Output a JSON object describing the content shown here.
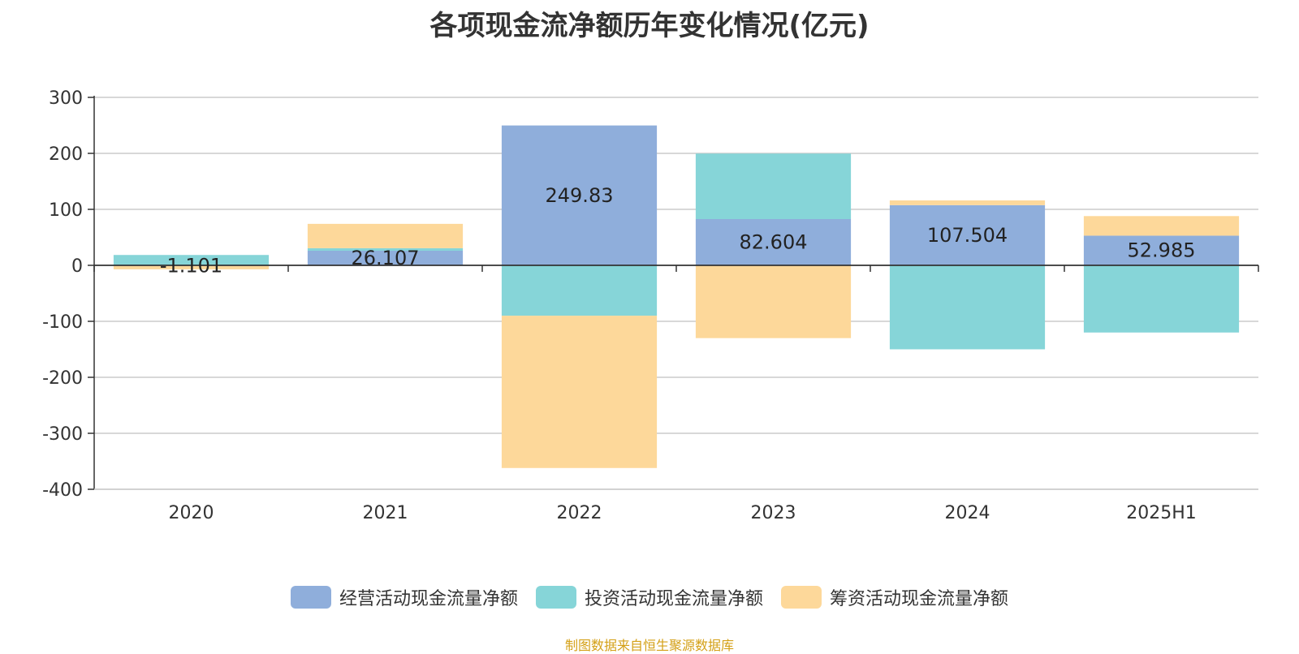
{
  "chart_data": {
    "type": "bar",
    "stacked": true,
    "title": "各项现金流净额历年变化情况(亿元)",
    "categories": [
      "2020",
      "2021",
      "2022",
      "2023",
      "2024",
      "2025H1"
    ],
    "series": [
      {
        "name": "经营活动现金流量净额",
        "color": "#8faedb",
        "values": [
          -1.101,
          26.107,
          249.83,
          82.604,
          107.504,
          52.985
        ]
      },
      {
        "name": "投资活动现金流量净额",
        "color": "#86d5d8",
        "values": [
          18.5,
          4.5,
          -90.0,
          117.0,
          -150.0,
          -120.0
        ]
      },
      {
        "name": "筹资活动现金流量净额",
        "color": "#fdd89a",
        "values": [
          -6.0,
          43.5,
          -272.0,
          -130.0,
          8.5,
          35.0
        ]
      }
    ],
    "data_labels": [
      "-1.101",
      "26.107",
      "249.83",
      "82.604",
      "107.504",
      "52.985"
    ],
    "ylim": [
      -400,
      300
    ],
    "yticks": [
      300,
      200,
      100,
      0,
      -100,
      -200,
      -300,
      -400
    ],
    "grid": true,
    "legend_position": "bottom",
    "xlabel": "",
    "ylabel": ""
  },
  "source": {
    "text": "制图数据来自恒生聚源数据库",
    "color": "#d4a017"
  }
}
